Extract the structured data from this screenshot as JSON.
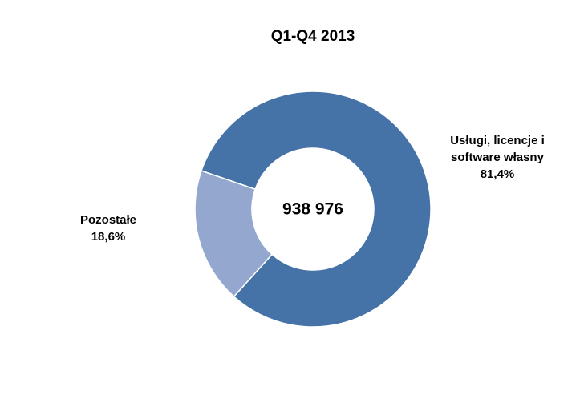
{
  "chart_data": {
    "type": "donut",
    "title": "Q1-Q4 2013",
    "center_label": "938 976",
    "categories": [
      "Usługi, licencje i software własny",
      "Pozostałe"
    ],
    "values": [
      81.4,
      18.6
    ],
    "value_labels": [
      "81,4%",
      "18,6%"
    ],
    "colors": [
      "#4572a7",
      "#94a8cf"
    ]
  }
}
